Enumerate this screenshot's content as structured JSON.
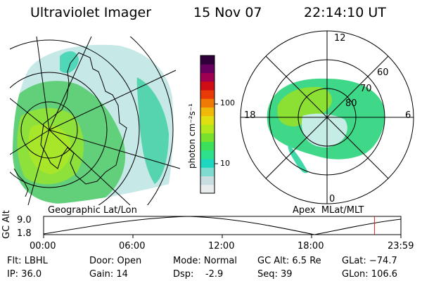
{
  "header": {
    "instrument": "Ultraviolet Imager",
    "date": "15 Nov 07",
    "time": "22:14:10 UT"
  },
  "left_map": {
    "caption": "Geographic Lat/Lon"
  },
  "right_map": {
    "caption": "Apex  MLat/MLT",
    "mlt_labels": [
      "12",
      "18",
      "6",
      "0"
    ],
    "mlat_labels": [
      "60",
      "70",
      "80"
    ]
  },
  "colorbar": {
    "unit_label": "photon cm⁻²s⁻¹",
    "tick_labels": [
      "100",
      "10"
    ],
    "colors": [
      "#e8ecec",
      "#c8dde0",
      "#7fdad0",
      "#1fd6c0",
      "#2ee08c",
      "#3de05a",
      "#79e02e",
      "#b4e81c",
      "#e0e010",
      "#f0b808",
      "#f07a06",
      "#e83a08",
      "#d00c14",
      "#a00050",
      "#680060",
      "#30003a"
    ]
  },
  "timeline": {
    "axis_label": "GC Alt",
    "y_max": "9.0",
    "y_min": "1.8",
    "tick_labels": [
      "00:00",
      "06:00",
      "12:00",
      "18:00",
      "23:59"
    ],
    "current_time_fraction": 0.926
  },
  "footer": {
    "flt": "Flt: LBHL",
    "ip": "IP: 36.0",
    "door": "Door: Open",
    "gain": "Gain: 14",
    "mode": "Mode: Normal",
    "dsp": "Dsp:    -2.9",
    "gcalt": "GC Alt: 6.5 Re",
    "seq": "Seq: 39",
    "glat": "GLat: −74.7",
    "glon": "GLon: 106.6"
  },
  "colors": {
    "marker": "#e02020",
    "foreground": "#000000",
    "background": "#ffffff"
  }
}
